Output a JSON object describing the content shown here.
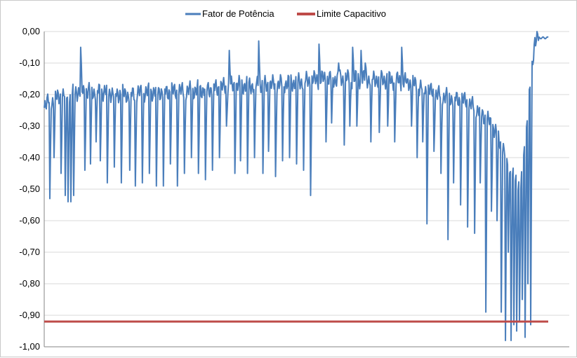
{
  "chart_data": {
    "type": "line",
    "title": "",
    "xlabel": "",
    "ylabel": "",
    "ylim": [
      -1.0,
      0.0
    ],
    "y_ticks": [
      "0,00",
      "-0,10",
      "-0,20",
      "-0,30",
      "-0,40",
      "-0,50",
      "-0,60",
      "-0,70",
      "-0,80",
      "-0,90",
      "-1,00"
    ],
    "y_tick_values": [
      0.0,
      -0.1,
      -0.2,
      -0.3,
      -0.4,
      -0.5,
      -0.6,
      -0.7,
      -0.8,
      -0.9,
      -1.0
    ],
    "grid": true,
    "legend_position": "top",
    "x_count": 720,
    "series": [
      {
        "name": "Fator de Potência",
        "color": "#4a7ebb",
        "baseline": [
          [
            0,
            -0.23
          ],
          [
            40,
            -0.19
          ],
          [
            80,
            -0.19
          ],
          [
            120,
            -0.2
          ],
          [
            160,
            -0.19
          ],
          [
            200,
            -0.19
          ],
          [
            240,
            -0.18
          ],
          [
            280,
            -0.17
          ],
          [
            320,
            -0.17
          ],
          [
            360,
            -0.16
          ],
          [
            400,
            -0.15
          ],
          [
            440,
            -0.15
          ],
          [
            480,
            -0.15
          ],
          [
            520,
            -0.16
          ],
          [
            560,
            -0.2
          ],
          [
            600,
            -0.22
          ],
          [
            620,
            -0.25
          ],
          [
            640,
            -0.3
          ],
          [
            660,
            -0.4
          ],
          [
            680,
            -0.5
          ],
          [
            700,
            -0.02
          ],
          [
            720,
            -0.02
          ]
        ],
        "events": [
          [
            8,
            -0.53
          ],
          [
            14,
            -0.4
          ],
          [
            24,
            -0.45
          ],
          [
            30,
            -0.52
          ],
          [
            34,
            -0.54
          ],
          [
            38,
            -0.54
          ],
          [
            42,
            -0.52
          ],
          [
            52,
            -0.05
          ],
          [
            58,
            -0.44
          ],
          [
            66,
            -0.42
          ],
          [
            74,
            -0.35
          ],
          [
            80,
            -0.41
          ],
          [
            90,
            -0.48
          ],
          [
            100,
            -0.43
          ],
          [
            110,
            -0.48
          ],
          [
            122,
            -0.44
          ],
          [
            130,
            -0.49
          ],
          [
            140,
            -0.48
          ],
          [
            150,
            -0.45
          ],
          [
            160,
            -0.49
          ],
          [
            170,
            -0.49
          ],
          [
            180,
            -0.42
          ],
          [
            190,
            -0.49
          ],
          [
            200,
            -0.45
          ],
          [
            210,
            -0.4
          ],
          [
            220,
            -0.45
          ],
          [
            230,
            -0.47
          ],
          [
            240,
            -0.44
          ],
          [
            250,
            -0.4
          ],
          [
            260,
            -0.3
          ],
          [
            264,
            -0.06
          ],
          [
            272,
            -0.45
          ],
          [
            280,
            -0.41
          ],
          [
            290,
            -0.45
          ],
          [
            300,
            -0.4
          ],
          [
            306,
            -0.03
          ],
          [
            312,
            -0.45
          ],
          [
            320,
            -0.38
          ],
          [
            330,
            -0.46
          ],
          [
            340,
            -0.41
          ],
          [
            350,
            -0.4
          ],
          [
            360,
            -0.42
          ],
          [
            370,
            -0.44
          ],
          [
            380,
            -0.52
          ],
          [
            392,
            -0.04
          ],
          [
            402,
            -0.35
          ],
          [
            410,
            -0.29
          ],
          [
            420,
            -0.1
          ],
          [
            428,
            -0.36
          ],
          [
            436,
            -0.3
          ],
          [
            440,
            -0.05
          ],
          [
            446,
            -0.3
          ],
          [
            452,
            -0.06
          ],
          [
            458,
            -0.1
          ],
          [
            466,
            -0.35
          ],
          [
            478,
            -0.32
          ],
          [
            490,
            -0.3
          ],
          [
            500,
            -0.35
          ],
          [
            510,
            -0.05
          ],
          [
            518,
            -0.15
          ],
          [
            524,
            -0.3
          ],
          [
            532,
            -0.4
          ],
          [
            540,
            -0.35
          ],
          [
            546,
            -0.61
          ],
          [
            556,
            -0.38
          ],
          [
            566,
            -0.45
          ],
          [
            576,
            -0.66
          ],
          [
            584,
            -0.48
          ],
          [
            594,
            -0.55
          ],
          [
            604,
            -0.62
          ],
          [
            614,
            -0.64
          ],
          [
            622,
            -0.48
          ],
          [
            630,
            -0.89
          ],
          [
            638,
            -0.57
          ],
          [
            646,
            -0.6
          ],
          [
            652,
            -0.89
          ],
          [
            658,
            -0.98
          ],
          [
            662,
            -0.7
          ],
          [
            666,
            -0.98
          ],
          [
            670,
            -0.93
          ],
          [
            674,
            -0.95
          ],
          [
            678,
            -0.92
          ],
          [
            682,
            -0.85
          ],
          [
            686,
            -0.97
          ],
          [
            690,
            -0.8
          ],
          [
            694,
            -0.93
          ]
        ],
        "tail_start": 706,
        "tail_value": -0.02
      },
      {
        "name": "Limite Capacitivo",
        "color": "#be4b48",
        "values": [
          -0.92,
          -0.92
        ]
      }
    ]
  }
}
